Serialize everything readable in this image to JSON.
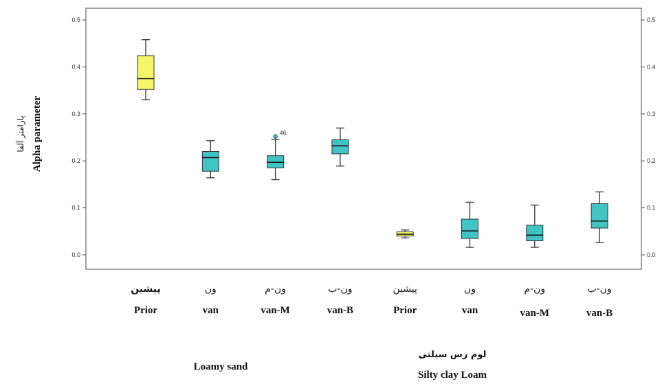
{
  "chart_data": {
    "type": "box",
    "ylabel": "Alpha parameter",
    "ylabel_fa": "پارامتر آلفا",
    "ylim": [
      -0.015,
      0.52
    ],
    "yticks": [
      "0.0",
      "0.1",
      "0.2",
      "0.3",
      "0.4",
      "0.5"
    ],
    "right_axis_ticks": true,
    "grid": false,
    "colors": {
      "prior": "#f5f56a",
      "van": "#40c4c4",
      "stroke": "#333333",
      "whisker": "#333333"
    },
    "groups": [
      {
        "label": "Loamy sand",
        "label_fa": ""
      },
      {
        "label": "Silty clay Loam",
        "label_fa": "لوم رس سیلتی"
      }
    ],
    "boxes": [
      {
        "label_fa": "پیشین",
        "label_en": "Prior",
        "group": 0,
        "color": "prior",
        "min": 0.33,
        "q1": 0.352,
        "median": 0.375,
        "q3": 0.424,
        "max": 0.458,
        "outliers": []
      },
      {
        "label_fa": "ون",
        "label_en": "van",
        "group": 0,
        "color": "van",
        "min": 0.164,
        "q1": 0.178,
        "median": 0.207,
        "q3": 0.22,
        "max": 0.243,
        "outliers": []
      },
      {
        "label_fa": "ون-م",
        "label_en": "van-M",
        "group": 0,
        "color": "van",
        "min": 0.16,
        "q1": 0.185,
        "median": 0.197,
        "q3": 0.211,
        "max": 0.246,
        "outliers": [
          {
            "value": 0.252,
            "label": "46"
          }
        ]
      },
      {
        "label_fa": "ون-ب",
        "label_en": "van-B",
        "group": 0,
        "color": "van",
        "min": 0.189,
        "q1": 0.215,
        "median": 0.232,
        "q3": 0.245,
        "max": 0.27,
        "outliers": []
      },
      {
        "label_fa": "پیشین",
        "label_en": "Prior",
        "group": 1,
        "color": "prior",
        "min": 0.036,
        "q1": 0.04,
        "median": 0.044,
        "q3": 0.049,
        "max": 0.053,
        "outliers": []
      },
      {
        "label_fa": "ون",
        "label_en": "van",
        "group": 1,
        "color": "van",
        "min": 0.016,
        "q1": 0.035,
        "median": 0.051,
        "q3": 0.076,
        "max": 0.112,
        "outliers": []
      },
      {
        "label_fa": "ون-م",
        "label_en": "van-M",
        "group": 1,
        "color": "van",
        "min": 0.016,
        "q1": 0.03,
        "median": 0.042,
        "q3": 0.063,
        "max": 0.106,
        "outliers": []
      },
      {
        "label_fa": "ون-ب",
        "label_en": "van-B",
        "group": 1,
        "color": "van",
        "min": 0.026,
        "q1": 0.057,
        "median": 0.072,
        "q3": 0.109,
        "max": 0.134,
        "outliers": []
      }
    ]
  }
}
